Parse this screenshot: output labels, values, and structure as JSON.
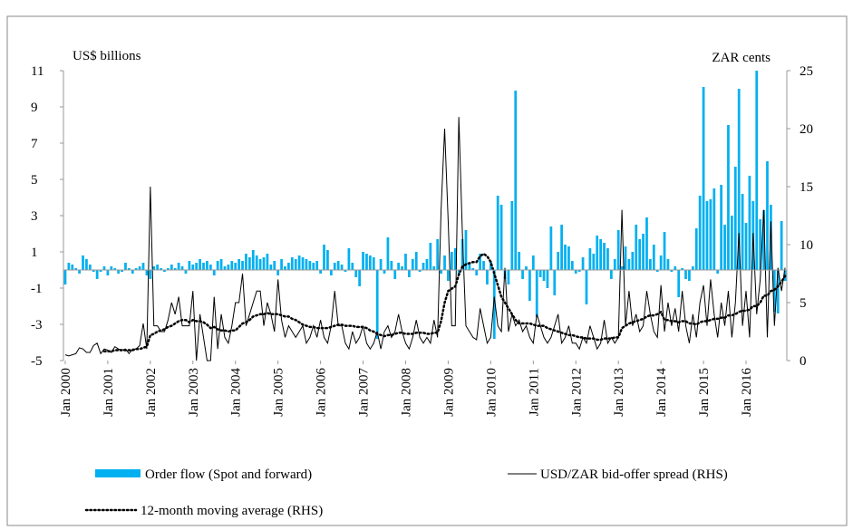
{
  "chart_data": {
    "type": "bar-line",
    "y_label": "US$ billions",
    "y2_label": "ZAR cents",
    "ylim": [
      -5,
      11
    ],
    "yticks": [
      -5,
      -3,
      -1,
      1,
      3,
      5,
      7,
      9,
      11
    ],
    "y2lim": [
      0,
      25
    ],
    "y2ticks": [
      0,
      5,
      10,
      15,
      20,
      25
    ],
    "categories": [
      "Jan 2000",
      null,
      null,
      null,
      null,
      null,
      null,
      null,
      null,
      null,
      null,
      null,
      "Jan 2001",
      null,
      null,
      null,
      null,
      null,
      null,
      null,
      null,
      null,
      null,
      null,
      "Jan 2002",
      null,
      null,
      null,
      null,
      null,
      null,
      null,
      null,
      null,
      null,
      null,
      "Jan 2003",
      null,
      null,
      null,
      null,
      null,
      null,
      null,
      null,
      null,
      null,
      null,
      "Jan 2004",
      null,
      null,
      null,
      null,
      null,
      null,
      null,
      null,
      null,
      null,
      null,
      "Jan 2005",
      null,
      null,
      null,
      null,
      null,
      null,
      null,
      null,
      null,
      null,
      null,
      "Jan 2006",
      null,
      null,
      null,
      null,
      null,
      null,
      null,
      null,
      null,
      null,
      null,
      "Jan 2007",
      null,
      null,
      null,
      null,
      null,
      null,
      null,
      null,
      null,
      null,
      null,
      "Jan 2008",
      null,
      null,
      null,
      null,
      null,
      null,
      null,
      null,
      null,
      null,
      null,
      "Jan 2009",
      null,
      null,
      null,
      null,
      null,
      null,
      null,
      null,
      null,
      null,
      null,
      "Jan 2010",
      null,
      null,
      null,
      null,
      null,
      null,
      null,
      null,
      null,
      null,
      null,
      "Jan 2011",
      null,
      null,
      null,
      null,
      null,
      null,
      null,
      null,
      null,
      null,
      null,
      "Jan 2012",
      null,
      null,
      null,
      null,
      null,
      null,
      null,
      null,
      null,
      null,
      null,
      "Jan 2013",
      null,
      null,
      null,
      null,
      null,
      null,
      null,
      null,
      null,
      null,
      null,
      "Jan 2014",
      null,
      null,
      null,
      null,
      null,
      null,
      null,
      null,
      null,
      null,
      null,
      "Jan 2015",
      null,
      null,
      null,
      null,
      null,
      null,
      null,
      null,
      null,
      null,
      null,
      "Jan 2016",
      null,
      null,
      null,
      null,
      null,
      null,
      null,
      null,
      null,
      null,
      null
    ],
    "series": [
      {
        "name": "Order flow (Spot and forward)",
        "kind": "bar",
        "color": "#00b0f0",
        "values": [
          -0.8,
          0.4,
          0.3,
          0.1,
          -0.2,
          0.8,
          0.6,
          0.3,
          -0.1,
          -0.5,
          -0.1,
          0.2,
          -0.3,
          0.2,
          0.1,
          -0.2,
          -0.1,
          0.4,
          0.1,
          -0.2,
          0.1,
          0.2,
          0.4,
          -0.3,
          -0.5,
          0.2,
          0.3,
          0.1,
          -0.1,
          0.1,
          0.3,
          0.1,
          0.4,
          0.2,
          -0.2,
          0.5,
          0.3,
          0.4,
          0.6,
          0.4,
          0.5,
          0.3,
          -0.3,
          0.5,
          0.6,
          0.2,
          0.3,
          0.5,
          0.4,
          0.6,
          0.5,
          0.9,
          0.7,
          1.1,
          0.8,
          0.6,
          0.7,
          0.9,
          0.3,
          0.5,
          -0.3,
          0.6,
          0.2,
          0.4,
          0.7,
          0.6,
          0.8,
          0.7,
          0.6,
          0.5,
          0.4,
          0.5,
          -0.2,
          1.4,
          1.1,
          -0.3,
          0.4,
          0.5,
          0.3,
          -0.1,
          1.2,
          0.4,
          -0.4,
          -0.9,
          1.0,
          0.9,
          0.8,
          0.7,
          -3.8,
          0.6,
          -0.2,
          1.8,
          0.5,
          -0.5,
          0.4,
          0.2,
          0.9,
          -0.4,
          0.6,
          1.0,
          -0.1,
          0.4,
          0.6,
          1.5,
          0.2,
          1.7,
          -0.2,
          0.8,
          -0.6,
          1.0,
          1.2,
          -0.3,
          1.7,
          2.2,
          0.4,
          0.1,
          -0.3,
          0.9,
          0.5,
          -0.8,
          0.5,
          -3.8,
          4.1,
          3.6,
          -0.5,
          -0.8,
          3.8,
          9.9,
          1.0,
          -0.5,
          0.2,
          -1.7,
          0.8,
          -2.6,
          -0.4,
          -0.6,
          -1.0,
          2.4,
          -1.4,
          1.0,
          2.5,
          1.4,
          1.3,
          0.5,
          -0.2,
          -0.1,
          0.7,
          -1.9,
          1.2,
          0.9,
          1.9,
          1.7,
          1.5,
          1.2,
          -0.5,
          0.6,
          2.2,
          0.2,
          1.3,
          0.6,
          1.0,
          2.5,
          1.7,
          2.0,
          2.9,
          0.6,
          1.4,
          -0.1,
          0.8,
          2.1,
          0.6,
          -0.1,
          0.2,
          -1.5,
          0.1,
          -0.5,
          -0.6,
          0.2,
          2.3,
          4.1,
          10.1,
          3.8,
          3.9,
          4.5,
          -0.2,
          4.7,
          2.5,
          8.0,
          3.0,
          5.7,
          10.0,
          4.2,
          2.6,
          5.2,
          3.8,
          11.0,
          2.8,
          3.3,
          6.0,
          3.6,
          -2.3,
          -2.4,
          2.7,
          -0.6
        ]
      },
      {
        "name": "USD/ZAR bid-offer spread (RHS)",
        "kind": "line",
        "axis": "y2",
        "color": "#000000",
        "values": [
          0.5,
          0.4,
          0.5,
          0.6,
          1.1,
          1.0,
          0.7,
          0.7,
          1.3,
          1.5,
          0.6,
          1.0,
          0.9,
          0.7,
          1.2,
          1.0,
          0.9,
          1.0,
          0.6,
          1.0,
          1.0,
          1.3,
          3.2,
          1.0,
          15,
          3,
          3,
          2.5,
          2.5,
          3.5,
          5,
          4,
          5.5,
          3,
          3,
          3,
          6,
          0,
          4,
          2,
          0,
          0,
          5.5,
          1,
          4,
          2,
          1.5,
          3,
          5,
          5,
          7.5,
          3,
          4,
          5,
          6,
          6,
          3,
          5,
          4,
          2.5,
          7,
          3.5,
          2,
          3,
          2.5,
          2,
          2.5,
          3,
          1.5,
          2,
          3,
          2,
          3.5,
          2,
          1.5,
          3,
          6,
          3,
          3,
          1.5,
          1,
          2.5,
          1.5,
          2,
          3,
          1.5,
          1,
          1.5,
          2.5,
          1,
          2.5,
          3,
          2,
          2.5,
          4,
          2.5,
          1.5,
          1,
          2,
          3.5,
          2,
          1.5,
          2,
          1.5,
          3.5,
          2,
          13,
          20,
          12,
          3,
          3,
          21,
          11,
          3,
          2.5,
          2,
          1.8,
          4.5,
          3,
          1.5,
          2,
          5.5,
          3,
          2.5,
          8,
          2.5,
          4,
          3,
          3.5,
          2.5,
          3,
          2,
          1.5,
          4,
          3,
          2,
          1.5,
          2,
          3,
          4,
          1.5,
          2,
          3,
          1.5,
          1.5,
          1,
          2,
          1.5,
          3,
          2,
          1,
          1.5,
          3.5,
          1.5,
          2,
          1.5,
          2,
          13,
          3,
          6,
          3,
          4,
          2.5,
          3,
          6,
          4,
          2.5,
          2,
          6.5,
          2.5,
          5,
          3,
          4.5,
          2.5,
          6,
          3,
          1.5,
          4,
          2,
          5,
          6.5,
          3,
          7,
          4,
          2,
          5,
          3,
          6,
          2,
          5,
          11,
          3,
          6,
          2,
          11,
          4,
          7,
          13,
          2,
          12,
          3,
          8,
          6,
          8
        ]
      },
      {
        "name": "12-month moving average (RHS)",
        "kind": "line",
        "dash": "dotted",
        "axis": "y2",
        "color": "#000000",
        "values": [
          null,
          null,
          null,
          null,
          null,
          null,
          null,
          null,
          null,
          null,
          null,
          0.8,
          0.8,
          0.8,
          0.9,
          0.9,
          0.9,
          0.9,
          0.9,
          0.9,
          1.0,
          1.0,
          1.1,
          1.2,
          2.2,
          2.3,
          2.5,
          2.6,
          2.7,
          2.9,
          3.0,
          3.2,
          3.4,
          3.5,
          3.5,
          3.3,
          3.5,
          3.4,
          3.4,
          3.3,
          3.1,
          2.8,
          2.9,
          2.7,
          2.6,
          2.6,
          2.5,
          2.6,
          2.6,
          2.9,
          3.2,
          3.3,
          3.5,
          3.8,
          3.9,
          4.0,
          4.0,
          4.1,
          4.0,
          4.0,
          4.0,
          3.9,
          3.8,
          3.8,
          3.6,
          3.5,
          3.3,
          3.1,
          3.0,
          2.9,
          2.9,
          2.8,
          2.8,
          2.8,
          2.8,
          2.9,
          3.0,
          3.1,
          3.1,
          3.0,
          3.0,
          3.0,
          2.9,
          2.9,
          2.9,
          2.8,
          2.6,
          2.5,
          2.3,
          2.2,
          2.1,
          2.2,
          2.2,
          2.3,
          2.4,
          2.4,
          2.3,
          2.3,
          2.3,
          2.4,
          2.4,
          2.4,
          2.3,
          2.3,
          2.4,
          2.4,
          3.4,
          5.0,
          6.0,
          6.2,
          6.4,
          7.4,
          8.1,
          8.3,
          8.4,
          8.5,
          8.5,
          9.0,
          9.2,
          9.0,
          8.5,
          7.5,
          6.5,
          5.5,
          5.0,
          4.5,
          4.0,
          3.5,
          3.2,
          3.2,
          3.2,
          3.2,
          3.1,
          3.0,
          3.0,
          3.0,
          2.8,
          2.7,
          2.6,
          2.5,
          2.4,
          2.3,
          2.2,
          2.2,
          2.1,
          2.0,
          2.0,
          1.9,
          1.9,
          1.9,
          1.8,
          1.8,
          1.9,
          1.9,
          1.9,
          2.0,
          2.0,
          2.8,
          3.0,
          3.2,
          3.3,
          3.4,
          3.5,
          3.6,
          3.8,
          3.9,
          3.9,
          4.0,
          4.2,
          3.5,
          3.5,
          3.4,
          3.4,
          3.3,
          3.4,
          3.4,
          3.2,
          3.2,
          3.1,
          3.3,
          3.4,
          3.4,
          3.5,
          3.6,
          3.6,
          3.7,
          3.7,
          3.9,
          3.9,
          4.0,
          4.2,
          4.3,
          4.3,
          4.4,
          4.7,
          4.7,
          5.0,
          5.6,
          5.6,
          6.0,
          6.1,
          6.4,
          6.8,
          7.3
        ]
      }
    ]
  }
}
